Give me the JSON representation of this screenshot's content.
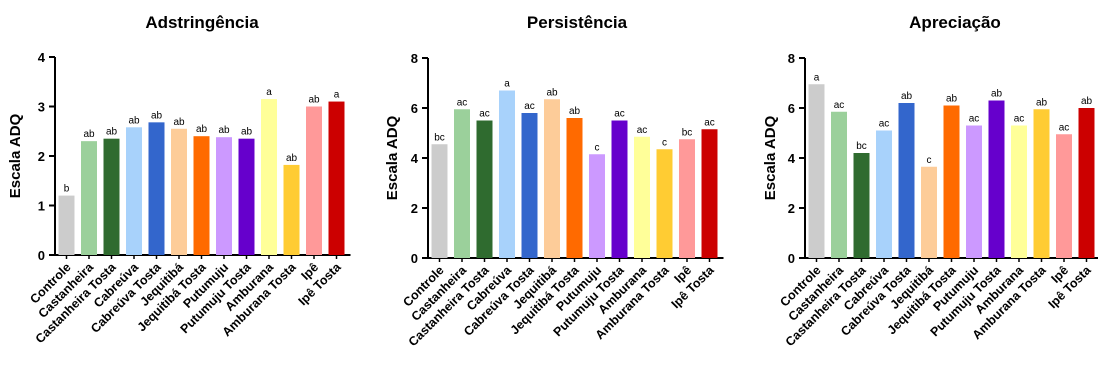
{
  "colors": [
    "#cccccc",
    "#9bd09b",
    "#2f6b2f",
    "#a8d2fb",
    "#3366cc",
    "#fdcc99",
    "#ff6a00",
    "#cc99ff",
    "#6600cc",
    "#ffff99",
    "#ffcc33",
    "#ff9999",
    "#cc0000"
  ],
  "categories": [
    "Controle",
    "Castanheira",
    "Castanheira Tosta",
    "Cabreúva",
    "Cabreúva Tosta",
    "Jequitibá",
    "Jequitibá Tosta",
    "Putumuju",
    "Putumuju Tosta",
    "Amburana",
    "Amburana Tosta",
    "Ipê",
    "Ipê Tosta"
  ],
  "chart_data": [
    {
      "type": "bar",
      "title": "Adstringência",
      "ylabel": "Escala ADQ",
      "ylim": [
        0,
        4
      ],
      "yticks": [
        0,
        1,
        2,
        3,
        4
      ],
      "categories": [
        "Controle",
        "Castanheira",
        "Castanheira Tosta",
        "Cabreúva",
        "Cabreúva Tosta",
        "Jequitibá",
        "Jequitibá Tosta",
        "Putumuju",
        "Putumuju Tosta",
        "Amburana",
        "Amburana Tosta",
        "Ipê",
        "Ipê Tosta"
      ],
      "values": [
        1.2,
        2.3,
        2.35,
        2.58,
        2.68,
        2.55,
        2.4,
        2.38,
        2.35,
        3.15,
        1.82,
        3.0,
        3.1
      ],
      "labels": [
        "b",
        "ab",
        "ab",
        "ab",
        "ab",
        "ab",
        "ab",
        "ab",
        "ab",
        "a",
        "ab",
        "ab",
        "a"
      ]
    },
    {
      "type": "bar",
      "title": "Persistência",
      "ylabel": "Escala ADQ",
      "ylim": [
        0,
        8
      ],
      "yticks": [
        0,
        2,
        4,
        6,
        8
      ],
      "categories": [
        "Controle",
        "Castanheira",
        "Castanheira Tosta",
        "Cabreúva",
        "Cabreúva Tosta",
        "Jequitibá",
        "Jequitibá Tosta",
        "Putumuju",
        "Putumuju Tosta",
        "Amburana",
        "Amburana Tosta",
        "Ipê",
        "Ipê Tosta"
      ],
      "values": [
        4.55,
        5.95,
        5.5,
        6.7,
        5.8,
        6.35,
        5.6,
        4.15,
        5.5,
        4.85,
        4.35,
        4.75,
        5.15
      ],
      "labels": [
        "bc",
        "ac",
        "ac",
        "a",
        "ac",
        "ab",
        "ab",
        "c",
        "ac",
        "ac",
        "c",
        "bc",
        "ac"
      ]
    },
    {
      "type": "bar",
      "title": "Apreciação",
      "ylabel": "Escala ADQ",
      "ylim": [
        0,
        8
      ],
      "yticks": [
        0,
        2,
        4,
        6,
        8
      ],
      "categories": [
        "Controle",
        "Castanheira",
        "Castanheira Tosta",
        "Cabreúva",
        "Cabreúva Tosta",
        "Jequitibá",
        "Jequitibá Tosta",
        "Putumuju",
        "Putumuju Tosta",
        "Amburana",
        "Amburana Tosta",
        "Ipê",
        "Ipê Tosta"
      ],
      "values": [
        6.95,
        5.85,
        4.2,
        5.1,
        6.2,
        3.65,
        6.1,
        5.3,
        6.3,
        5.3,
        5.95,
        4.95,
        6.0
      ],
      "labels": [
        "a",
        "ac",
        "bc",
        "ac",
        "ab",
        "c",
        "ab",
        "ac",
        "ab",
        "ac",
        "ab",
        "ac",
        "ab"
      ]
    }
  ]
}
